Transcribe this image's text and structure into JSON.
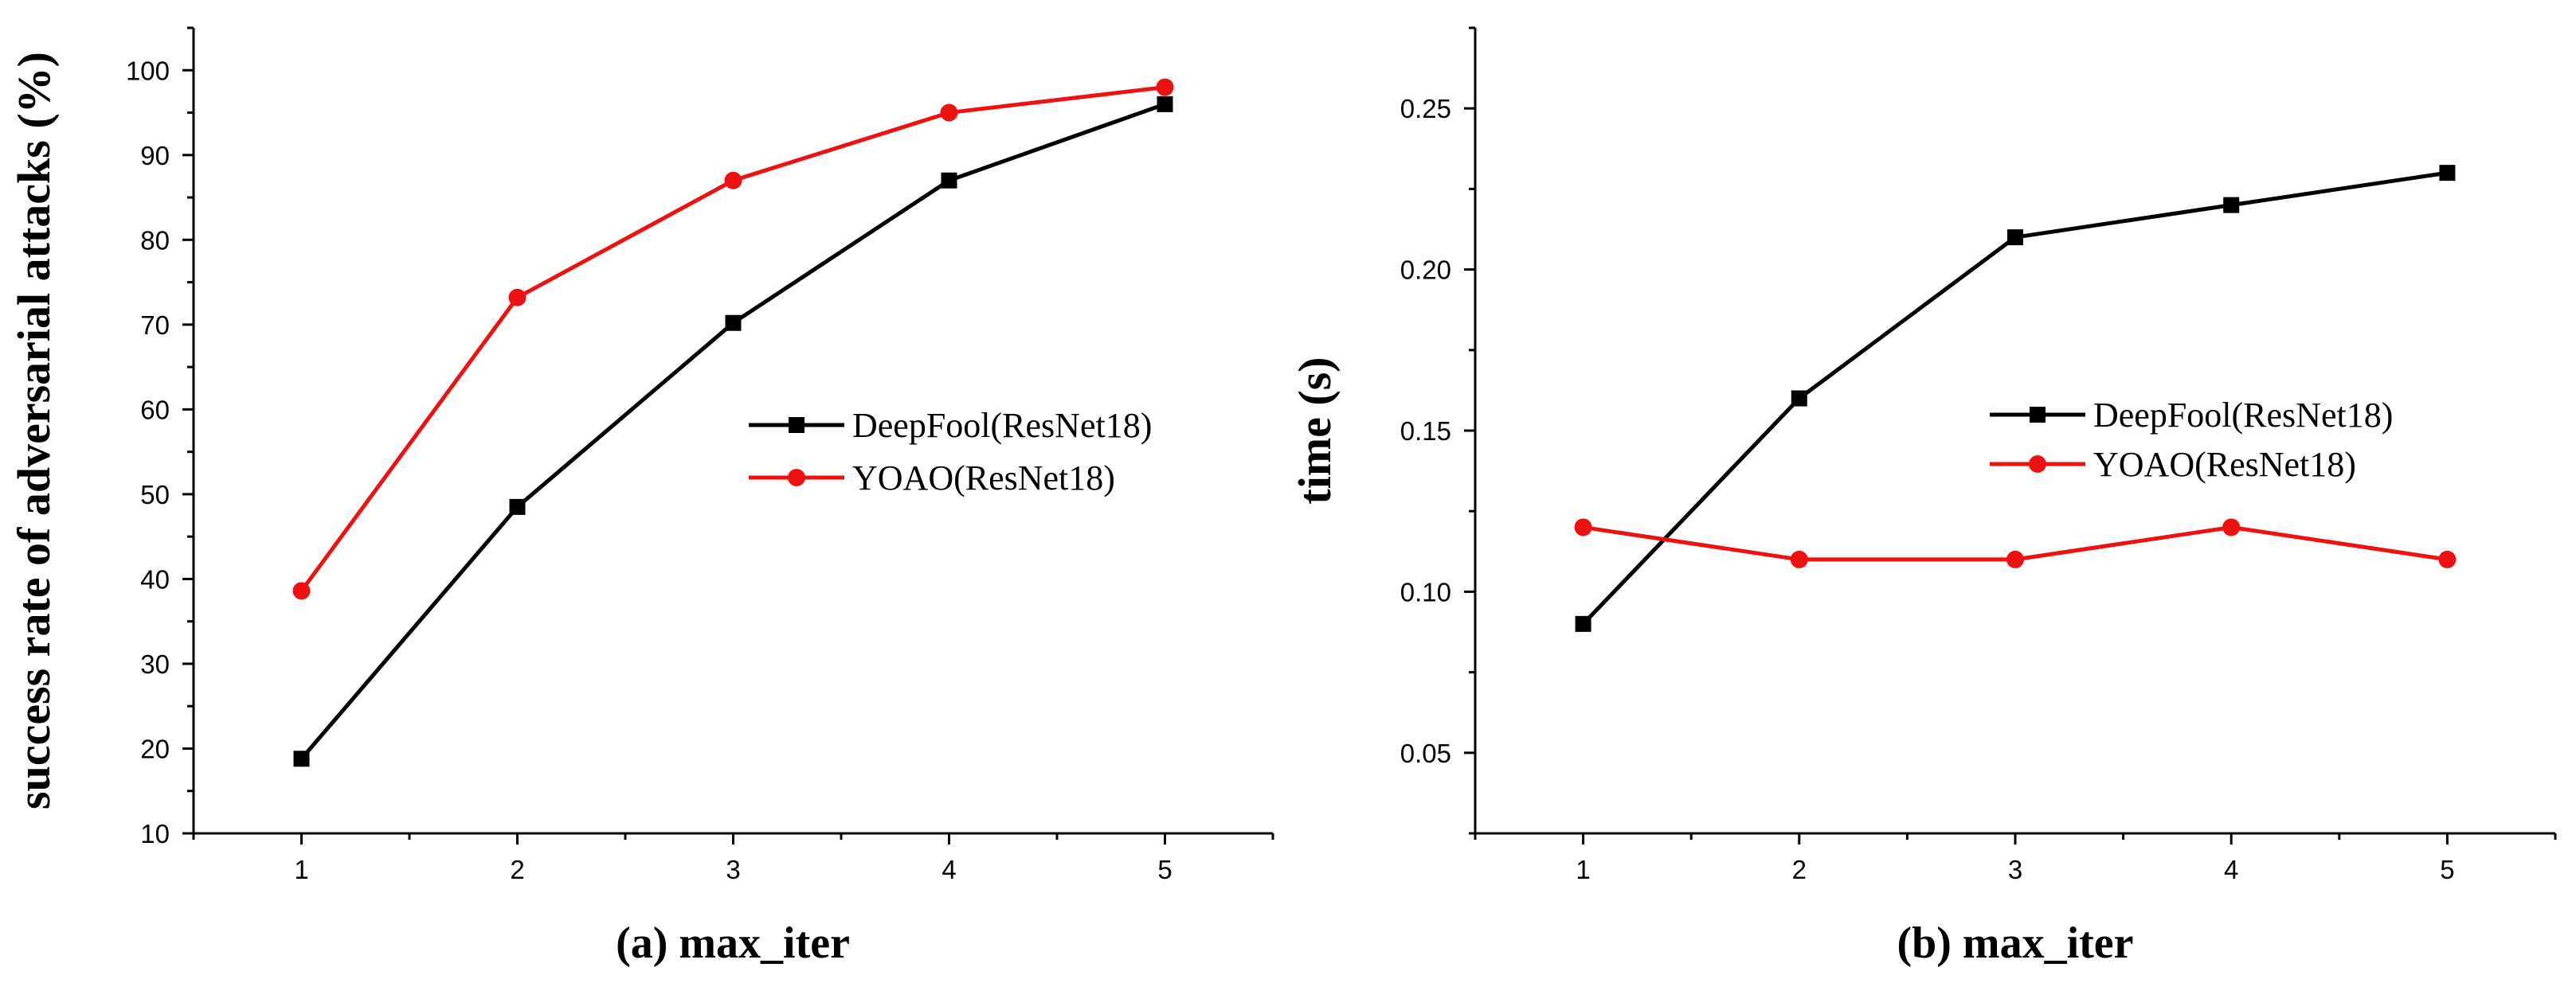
{
  "chart_data": [
    {
      "type": "line",
      "xlabel": "(a) max_iter",
      "ylabel": "success rate of adversarial attacks (%)",
      "x": [
        1,
        2,
        3,
        4,
        5
      ],
      "xlim": [
        0.5,
        5.5
      ],
      "ylim": [
        10,
        105
      ],
      "x_ticks": [
        1,
        2,
        3,
        4,
        5
      ],
      "y_ticks": [
        10,
        20,
        30,
        40,
        50,
        60,
        70,
        80,
        90,
        100
      ],
      "legend_position": "center-right",
      "grid": false,
      "series": [
        {
          "name": "DeepFool(ResNet18)",
          "color": "#000000",
          "marker": "square",
          "values": [
            18.8,
            48.5,
            70.2,
            87.0,
            96.0
          ]
        },
        {
          "name": "YOAO(ResNet18)",
          "color": "#ee1111",
          "marker": "circle",
          "values": [
            38.6,
            73.2,
            87.0,
            95.0,
            98.0
          ]
        }
      ]
    },
    {
      "type": "line",
      "xlabel": "(b) max_iter",
      "ylabel": "time (s)",
      "x": [
        1,
        2,
        3,
        4,
        5
      ],
      "xlim": [
        0.5,
        5.5
      ],
      "ylim": [
        0.025,
        0.275
      ],
      "x_ticks": [
        1,
        2,
        3,
        4,
        5
      ],
      "y_ticks": [
        "0.05",
        "0.10",
        "0.15",
        "0.20",
        "0.25"
      ],
      "legend_position": "center-right",
      "grid": false,
      "series": [
        {
          "name": "DeepFool(ResNet18)",
          "color": "#000000",
          "marker": "square",
          "values": [
            0.09,
            0.16,
            0.21,
            0.22,
            0.23
          ]
        },
        {
          "name": "YOAO(ResNet18)",
          "color": "#ee1111",
          "marker": "circle",
          "values": [
            0.12,
            0.11,
            0.11,
            0.12,
            0.11
          ]
        }
      ]
    }
  ]
}
